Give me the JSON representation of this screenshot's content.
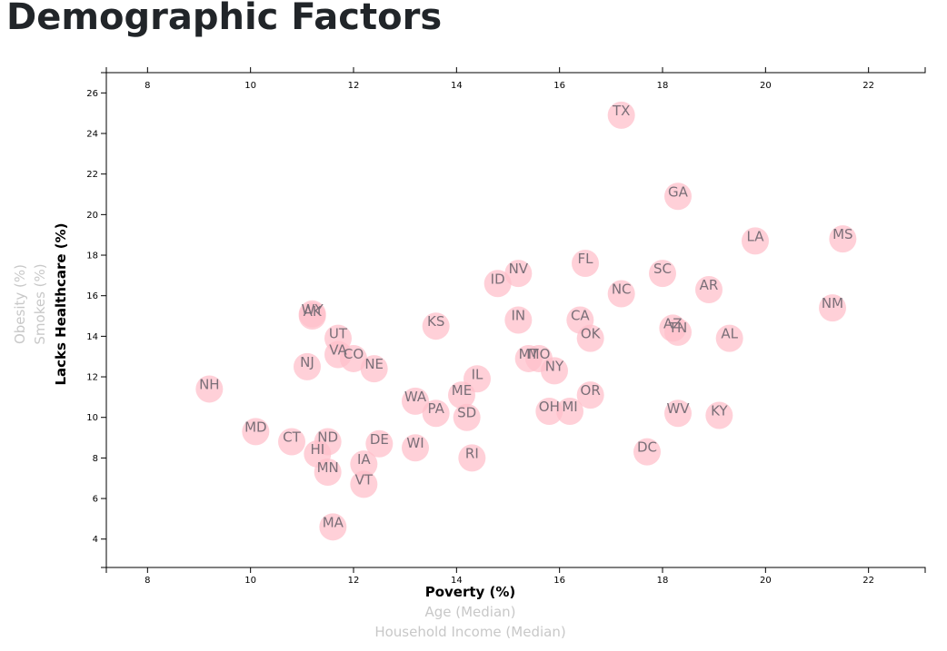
{
  "page": {
    "title": "Demographic Factors"
  },
  "colors": {
    "circle": "#ffc0cb",
    "state_text": "#7a6f78",
    "active_label": "#000000",
    "inactive_label": "#c8c8c8"
  },
  "chart_data": {
    "type": "scatter",
    "x_axis": {
      "labels": [
        {
          "text": "Poverty (%)",
          "active": true
        },
        {
          "text": "Age (Median)",
          "active": false
        },
        {
          "text": "Household Income (Median)",
          "active": false
        }
      ],
      "range": [
        7.2,
        23.1
      ],
      "ticks": [
        8,
        10,
        12,
        14,
        16,
        18,
        20,
        22
      ]
    },
    "y_axis": {
      "labels": [
        {
          "text": "Lacks Healthcare (%)",
          "active": true
        },
        {
          "text": "Smokes (%)",
          "active": false
        },
        {
          "text": "Obesity (%)",
          "active": false
        }
      ],
      "range": [
        2.6,
        27.0
      ],
      "ticks": [
        4,
        6,
        8,
        10,
        12,
        14,
        16,
        18,
        20,
        22,
        24,
        26
      ]
    },
    "grid": false,
    "points": [
      {
        "abbr": "TX",
        "x": 17.2,
        "y": 24.9
      },
      {
        "abbr": "GA",
        "x": 18.3,
        "y": 20.9
      },
      {
        "abbr": "LA",
        "x": 19.8,
        "y": 18.7
      },
      {
        "abbr": "MS",
        "x": 21.5,
        "y": 18.8
      },
      {
        "abbr": "FL",
        "x": 16.5,
        "y": 17.6
      },
      {
        "abbr": "NV",
        "x": 15.2,
        "y": 17.1
      },
      {
        "abbr": "SC",
        "x": 18.0,
        "y": 17.1
      },
      {
        "abbr": "ID",
        "x": 14.8,
        "y": 16.6
      },
      {
        "abbr": "AR",
        "x": 18.9,
        "y": 16.3
      },
      {
        "abbr": "NC",
        "x": 17.2,
        "y": 16.1
      },
      {
        "abbr": "NM",
        "x": 21.3,
        "y": 15.4
      },
      {
        "abbr": "WY",
        "x": 11.2,
        "y": 15.1
      },
      {
        "abbr": "AK",
        "x": 11.2,
        "y": 15.0
      },
      {
        "abbr": "IN",
        "x": 15.2,
        "y": 14.8
      },
      {
        "abbr": "CA",
        "x": 16.4,
        "y": 14.8
      },
      {
        "abbr": "KS",
        "x": 13.6,
        "y": 14.5
      },
      {
        "abbr": "AZ",
        "x": 18.2,
        "y": 14.4
      },
      {
        "abbr": "TN",
        "x": 18.3,
        "y": 14.2
      },
      {
        "abbr": "OK",
        "x": 16.6,
        "y": 13.9
      },
      {
        "abbr": "AL",
        "x": 19.3,
        "y": 13.9
      },
      {
        "abbr": "UT",
        "x": 11.7,
        "y": 13.9
      },
      {
        "abbr": "VA",
        "x": 11.7,
        "y": 13.1
      },
      {
        "abbr": "CO",
        "x": 12.0,
        "y": 12.9
      },
      {
        "abbr": "MT",
        "x": 15.4,
        "y": 12.9
      },
      {
        "abbr": "MO",
        "x": 15.6,
        "y": 12.9
      },
      {
        "abbr": "NJ",
        "x": 11.1,
        "y": 12.5
      },
      {
        "abbr": "NE",
        "x": 12.4,
        "y": 12.4
      },
      {
        "abbr": "NY",
        "x": 15.9,
        "y": 12.3
      },
      {
        "abbr": "IL",
        "x": 14.4,
        "y": 11.9
      },
      {
        "abbr": "NH",
        "x": 9.2,
        "y": 11.4
      },
      {
        "abbr": "ME",
        "x": 14.1,
        "y": 11.1
      },
      {
        "abbr": "OR",
        "x": 16.6,
        "y": 11.1
      },
      {
        "abbr": "WA",
        "x": 13.2,
        "y": 10.8
      },
      {
        "abbr": "OH",
        "x": 15.8,
        "y": 10.3
      },
      {
        "abbr": "MI",
        "x": 16.2,
        "y": 10.3
      },
      {
        "abbr": "PA",
        "x": 13.6,
        "y": 10.2
      },
      {
        "abbr": "WV",
        "x": 18.3,
        "y": 10.2
      },
      {
        "abbr": "KY",
        "x": 19.1,
        "y": 10.1
      },
      {
        "abbr": "SD",
        "x": 14.2,
        "y": 10.0
      },
      {
        "abbr": "MD",
        "x": 10.1,
        "y": 9.3
      },
      {
        "abbr": "CT",
        "x": 10.8,
        "y": 8.8
      },
      {
        "abbr": "ND",
        "x": 11.5,
        "y": 8.8
      },
      {
        "abbr": "DE",
        "x": 12.5,
        "y": 8.7
      },
      {
        "abbr": "WI",
        "x": 13.2,
        "y": 8.5
      },
      {
        "abbr": "DC",
        "x": 17.7,
        "y": 8.3
      },
      {
        "abbr": "HI",
        "x": 11.3,
        "y": 8.2
      },
      {
        "abbr": "RI",
        "x": 14.3,
        "y": 8.0
      },
      {
        "abbr": "IA",
        "x": 12.2,
        "y": 7.7
      },
      {
        "abbr": "MN",
        "x": 11.5,
        "y": 7.3
      },
      {
        "abbr": "VT",
        "x": 12.2,
        "y": 6.7
      },
      {
        "abbr": "MA",
        "x": 11.6,
        "y": 4.6
      }
    ]
  }
}
